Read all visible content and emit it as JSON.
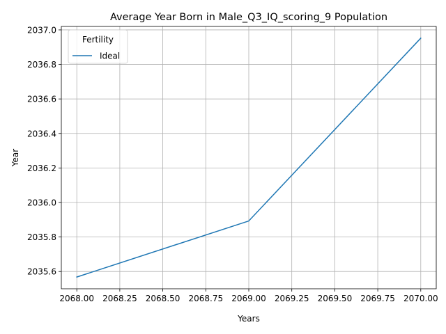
{
  "chart_data": {
    "type": "line",
    "title": "Average Year Born in Male_Q3_IQ_scoring_9 Population",
    "xlabel": "Years",
    "ylabel": "Year",
    "xlim": [
      2067.91,
      2070.09
    ],
    "ylim": [
      2035.5,
      2037.02
    ],
    "xticks": [
      2068.0,
      2068.25,
      2068.5,
      2068.75,
      2069.0,
      2069.25,
      2069.5,
      2069.75,
      2070.0
    ],
    "xtick_labels": [
      "2068.00",
      "2068.25",
      "2068.50",
      "2068.75",
      "2069.00",
      "2069.25",
      "2069.50",
      "2069.75",
      "2070.00"
    ],
    "yticks": [
      2035.6,
      2035.8,
      2036.0,
      2036.2,
      2036.4,
      2036.6,
      2036.8,
      2037.0
    ],
    "ytick_labels": [
      "2035.6",
      "2035.8",
      "2036.0",
      "2036.2",
      "2036.4",
      "2036.6",
      "2036.8",
      "2037.0"
    ],
    "grid": true,
    "legend": {
      "title": "Fertility",
      "placement": "top-left"
    },
    "series": [
      {
        "name": "Ideal",
        "color": "#1f77b4",
        "x": [
          2068,
          2069,
          2070
        ],
        "y": [
          2035.568,
          2035.893,
          2036.952
        ]
      }
    ]
  }
}
